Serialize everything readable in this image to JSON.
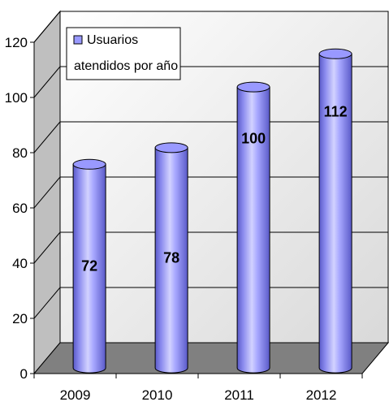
{
  "chart_data": {
    "type": "bar",
    "categories": [
      "2009",
      "2010",
      "2011",
      "2012"
    ],
    "series": [
      {
        "name": "Usuarios atendidos por año",
        "values": [
          72,
          78,
          100,
          112
        ]
      }
    ],
    "ylim": [
      0,
      120
    ],
    "yticks": [
      0,
      20,
      40,
      60,
      80,
      100,
      120
    ],
    "legend": {
      "placement": "top-left",
      "lines": [
        "Usuarios",
        "atendidos por año"
      ]
    },
    "grid": true,
    "three_d": true,
    "bar_shape": "cylinder",
    "data_labels": [
      "72",
      "78",
      "100",
      "112"
    ],
    "colors": {
      "bar": "#9999ff",
      "bar_dark": "#5a5ac8",
      "bar_light": "#d2d2ff",
      "back_wall": "#f2f2f2",
      "side_wall": "#bfbfbf",
      "floor": "#808080",
      "grid": "#000000"
    }
  }
}
